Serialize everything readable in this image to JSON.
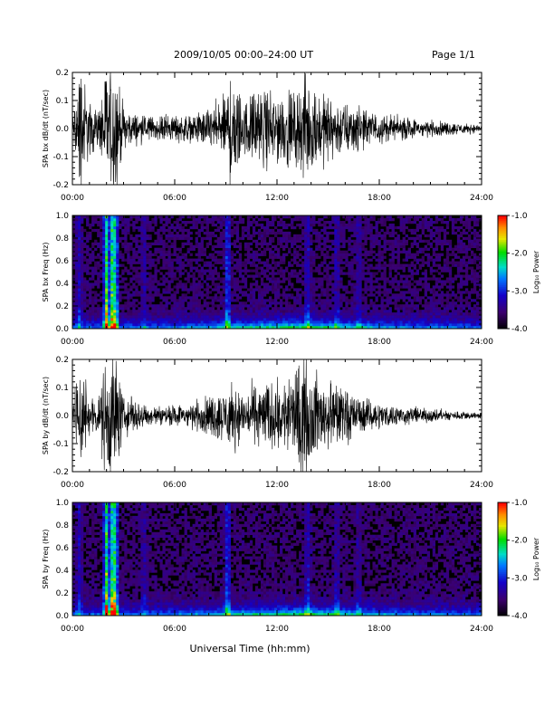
{
  "header": {
    "title": "2009/10/05  00:00–24:00 UT",
    "page": "Page 1/1"
  },
  "colors": {
    "trace": "#000000",
    "spectrogram_background": "#000000",
    "colorbar_top": "#ff0000",
    "colorbar_bottom": "#000000"
  },
  "chart_data": [
    {
      "type": "line",
      "ylabel": "SPA bx dB/dt (nT/sec)",
      "xlabel": "",
      "xlim": [
        0,
        24
      ],
      "ylim": [
        -0.2,
        0.2
      ],
      "xticks": [
        "00:00",
        "06:00",
        "12:00",
        "18:00",
        "24:00"
      ],
      "yticks": [
        "-0.2",
        "-0.1",
        "0.0",
        "0.1",
        "0.2"
      ],
      "envelope": {
        "x": [
          0,
          0.5,
          1.0,
          1.5,
          2.0,
          2.5,
          3.0,
          3.5,
          4.0,
          5.0,
          6.0,
          7.0,
          8.0,
          9.0,
          9.3,
          10.0,
          11.0,
          12.0,
          13.0,
          13.8,
          14.0,
          15.0,
          16.0,
          17.0,
          18.0,
          19.0,
          20.0,
          21.0,
          22.0,
          23.0,
          24.0
        ],
        "amplitude": [
          0.04,
          0.2,
          0.08,
          0.05,
          0.2,
          0.2,
          0.06,
          0.05,
          0.04,
          0.035,
          0.04,
          0.04,
          0.06,
          0.1,
          0.2,
          0.08,
          0.12,
          0.11,
          0.1,
          0.18,
          0.12,
          0.1,
          0.08,
          0.06,
          0.045,
          0.035,
          0.03,
          0.025,
          0.02,
          0.015,
          0.012
        ]
      }
    },
    {
      "type": "heatmap",
      "ylabel": "SPA bx Freq (Hz)",
      "xlabel": "",
      "xlim": [
        0,
        24
      ],
      "ylim": [
        0.0,
        1.0
      ],
      "xticks": [
        "00:00",
        "06:00",
        "12:00",
        "18:00",
        "24:00"
      ],
      "yticks": [
        "0.0",
        "0.2",
        "0.4",
        "0.6",
        "0.8",
        "1.0"
      ],
      "colorbar": {
        "label": "Log₁₀ Power",
        "range": [
          -4.0,
          -1.0
        ],
        "ticks": [
          "-1.0",
          "-2.0",
          "-3.0",
          "-4.0"
        ]
      }
    },
    {
      "type": "line",
      "ylabel": "SPA by dB/dt (nT/sec)",
      "xlabel": "",
      "xlim": [
        0,
        24
      ],
      "ylim": [
        -0.2,
        0.2
      ],
      "xticks": [
        "00:00",
        "06:00",
        "12:00",
        "18:00",
        "24:00"
      ],
      "yticks": [
        "-0.2",
        "-0.1",
        "0.0",
        "0.1",
        "0.2"
      ],
      "envelope": {
        "x": [
          0,
          0.5,
          1.0,
          1.5,
          2.0,
          2.5,
          3.0,
          3.5,
          4.0,
          5.0,
          6.0,
          7.0,
          8.0,
          9.0,
          9.3,
          10.0,
          11.0,
          12.0,
          13.0,
          13.5,
          14.0,
          15.0,
          16.0,
          17.0,
          18.0,
          19.0,
          20.0,
          21.0,
          22.0,
          23.0,
          24.0
        ],
        "amplitude": [
          0.03,
          0.2,
          0.06,
          0.04,
          0.2,
          0.2,
          0.05,
          0.06,
          0.04,
          0.03,
          0.03,
          0.04,
          0.06,
          0.08,
          0.1,
          0.07,
          0.1,
          0.1,
          0.12,
          0.18,
          0.13,
          0.1,
          0.08,
          0.05,
          0.04,
          0.03,
          0.025,
          0.02,
          0.015,
          0.012,
          0.01
        ]
      }
    },
    {
      "type": "heatmap",
      "ylabel": "SPA by Freq (Hz)",
      "xlabel": "Universal Time (hh:mm)",
      "xlim": [
        0,
        24
      ],
      "ylim": [
        0.0,
        1.0
      ],
      "xticks": [
        "00:00",
        "06:00",
        "12:00",
        "18:00",
        "24:00"
      ],
      "yticks": [
        "0.0",
        "0.2",
        "0.4",
        "0.6",
        "0.8",
        "1.0"
      ],
      "colorbar": {
        "label": "Log₁₀ Power",
        "range": [
          -4.0,
          -1.0
        ],
        "ticks": [
          "-1.0",
          "-2.0",
          "-3.0",
          "-4.0"
        ]
      }
    }
  ]
}
